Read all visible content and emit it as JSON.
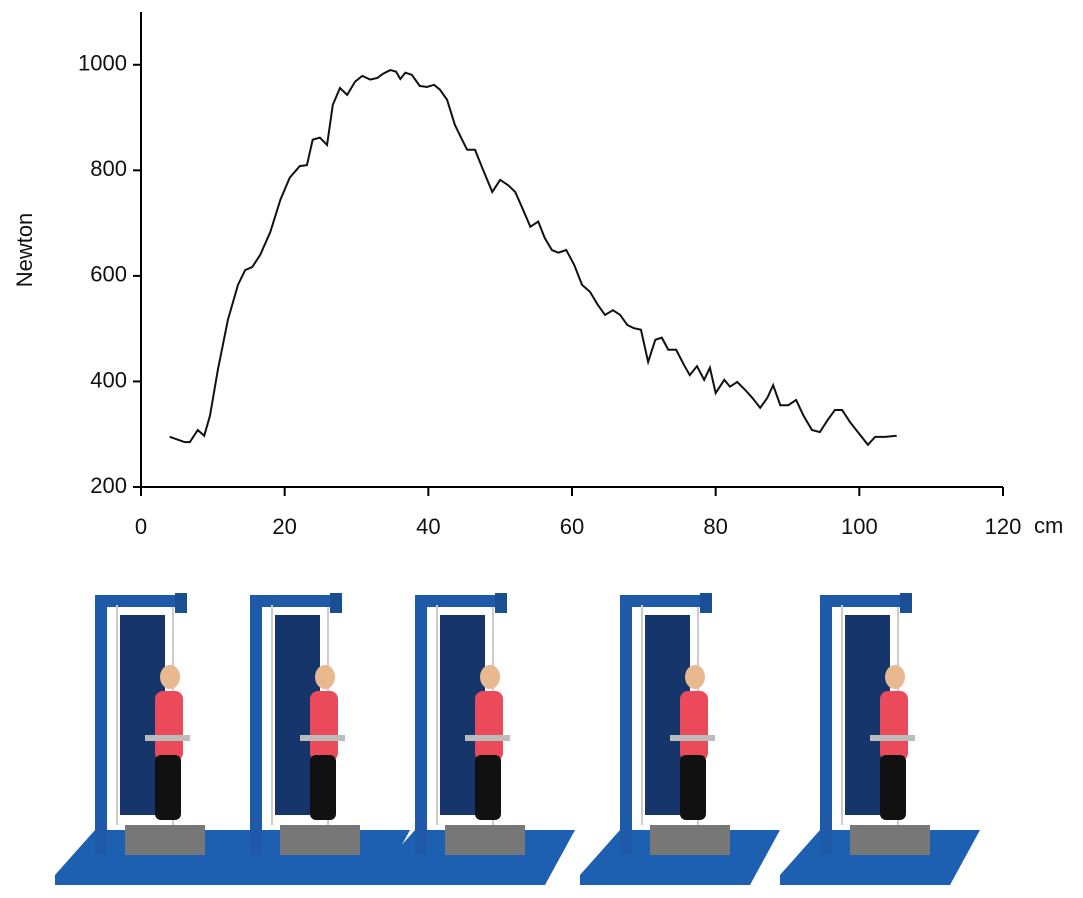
{
  "chart_data": {
    "type": "line",
    "y_label": "Newton",
    "x_unit": "cm",
    "color": "#111111",
    "xlim": [
      0,
      120
    ],
    "xticks": [
      0,
      20,
      40,
      60,
      80,
      100,
      120
    ],
    "ylim": [
      200,
      1100
    ],
    "yticks": [
      200,
      400,
      600,
      800,
      1000
    ],
    "x": [
      4.0,
      6.1,
      6.8,
      7.9,
      8.8,
      9.6,
      10.7,
      12.1,
      13.5,
      14.5,
      15.5,
      16.6,
      18.0,
      19.4,
      20.7,
      22.1,
      23.1,
      23.9,
      24.9,
      25.9,
      26.7,
      27.7,
      28.7,
      29.8,
      30.8,
      31.9,
      32.9,
      33.7,
      34.7,
      35.5,
      36.1,
      36.8,
      37.7,
      38.8,
      39.8,
      40.8,
      41.6,
      42.6,
      43.7,
      44.7,
      45.4,
      46.5,
      47.5,
      48.9,
      50.0,
      51.1,
      52.1,
      53.2,
      54.2,
      55.3,
      56.2,
      57.2,
      58.1,
      59.2,
      60.3,
      61.4,
      62.5,
      63.6,
      64.6,
      65.7,
      66.7,
      67.7,
      68.6,
      69.6,
      70.6,
      71.6,
      72.5,
      73.4,
      74.5,
      75.6,
      76.4,
      77.4,
      78.4,
      79.2,
      80.0,
      81.2,
      82.0,
      83.0,
      84.1,
      85.1,
      86.2,
      87.2,
      88.0,
      89.0,
      90.1,
      91.2,
      92.2,
      93.4,
      94.5,
      95.6,
      96.6,
      97.6,
      98.7,
      99.8,
      101.2,
      102.2,
      103.6,
      105.2
    ],
    "values": [
      295,
      285,
      285,
      308,
      297,
      335,
      422,
      517,
      583,
      611,
      617,
      640,
      683,
      744,
      786,
      808,
      810,
      858,
      862,
      848,
      924,
      956,
      943,
      968,
      979,
      972,
      975,
      983,
      990,
      987,
      973,
      985,
      981,
      960,
      958,
      962,
      953,
      934,
      886,
      858,
      839,
      839,
      805,
      759,
      782,
      772,
      759,
      725,
      693,
      703,
      672,
      649,
      644,
      649,
      621,
      583,
      570,
      545,
      526,
      535,
      526,
      507,
      501,
      498,
      437,
      479,
      483,
      460,
      460,
      431,
      412,
      429,
      403,
      426,
      378,
      403,
      390,
      399,
      384,
      369,
      350,
      369,
      393,
      355,
      355,
      365,
      336,
      308,
      304,
      327,
      346,
      346,
      323,
      304,
      280,
      295,
      295,
      297
    ]
  }
}
